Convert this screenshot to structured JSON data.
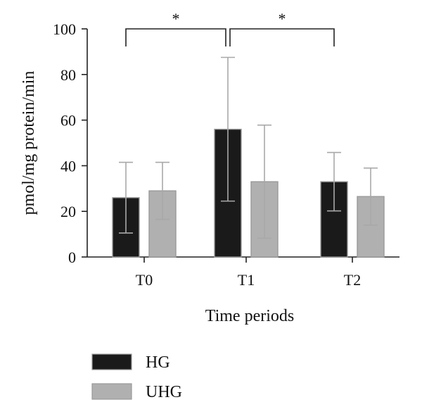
{
  "chart_data": {
    "type": "bar",
    "xlabel": "Time periods",
    "ylabel": "pmol/mg protein/min",
    "ylim": [
      0,
      100
    ],
    "yticks": [
      "0",
      "20",
      "40",
      "60",
      "80",
      "100"
    ],
    "categories": [
      "T0",
      "T1",
      "T2"
    ],
    "series": [
      {
        "name": "HG",
        "color": "#1a1a1a",
        "values": [
          26,
          56,
          33
        ],
        "errors": [
          15.5,
          31.5,
          12.8
        ]
      },
      {
        "name": "UHG",
        "color": "#b0b0b0",
        "values": [
          29,
          33,
          26.5
        ],
        "errors": [
          12.5,
          24.8,
          12.5
        ]
      }
    ],
    "significance": [
      {
        "from": [
          0,
          0
        ],
        "to": [
          1,
          0
        ],
        "label": "*"
      },
      {
        "from": [
          1,
          0
        ],
        "to": [
          2,
          0
        ],
        "label": "*"
      }
    ],
    "grid": false,
    "legend_position": "bottom-left"
  }
}
